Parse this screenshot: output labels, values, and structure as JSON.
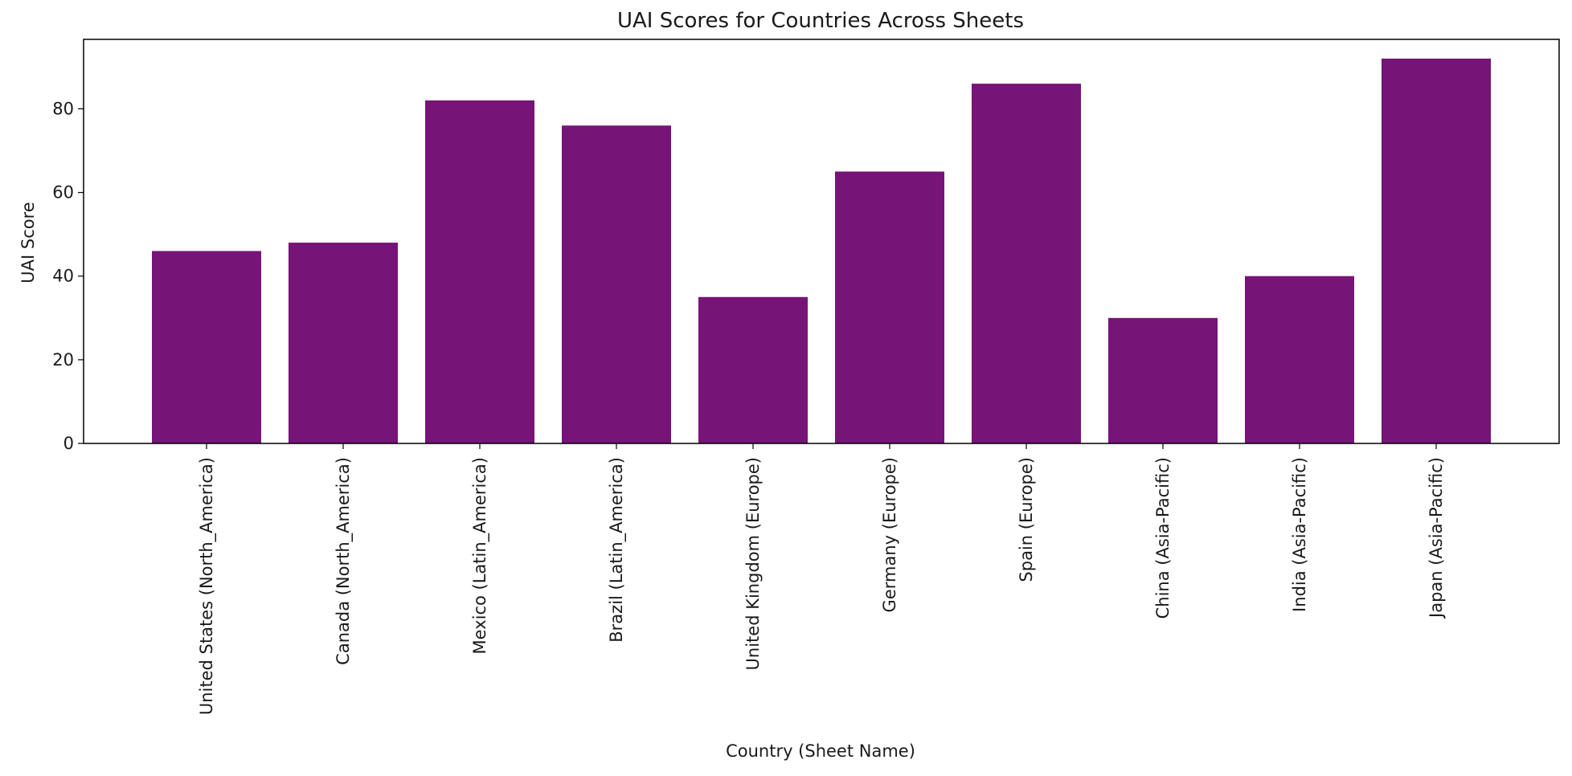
{
  "chart_data": {
    "type": "bar",
    "title": "UAI Scores for Countries Across Sheets",
    "xlabel": "Country (Sheet Name)",
    "ylabel": "UAI Score",
    "categories": [
      "United States (North_America)",
      "Canada (North_America)",
      "Mexico (Latin_America)",
      "Brazil (Latin_America)",
      "United Kingdom (Europe)",
      "Germany (Europe)",
      "Spain (Europe)",
      "China (Asia-Pacific)",
      "India (Asia-Pacific)",
      "Japan (Asia-Pacific)"
    ],
    "values": [
      46,
      48,
      82,
      76,
      35,
      65,
      86,
      30,
      40,
      92
    ],
    "ylim": [
      0,
      96.6
    ],
    "yticks": [
      0,
      20,
      40,
      60,
      80
    ],
    "bar_color": "#761477",
    "grid": false,
    "legend": "none"
  }
}
